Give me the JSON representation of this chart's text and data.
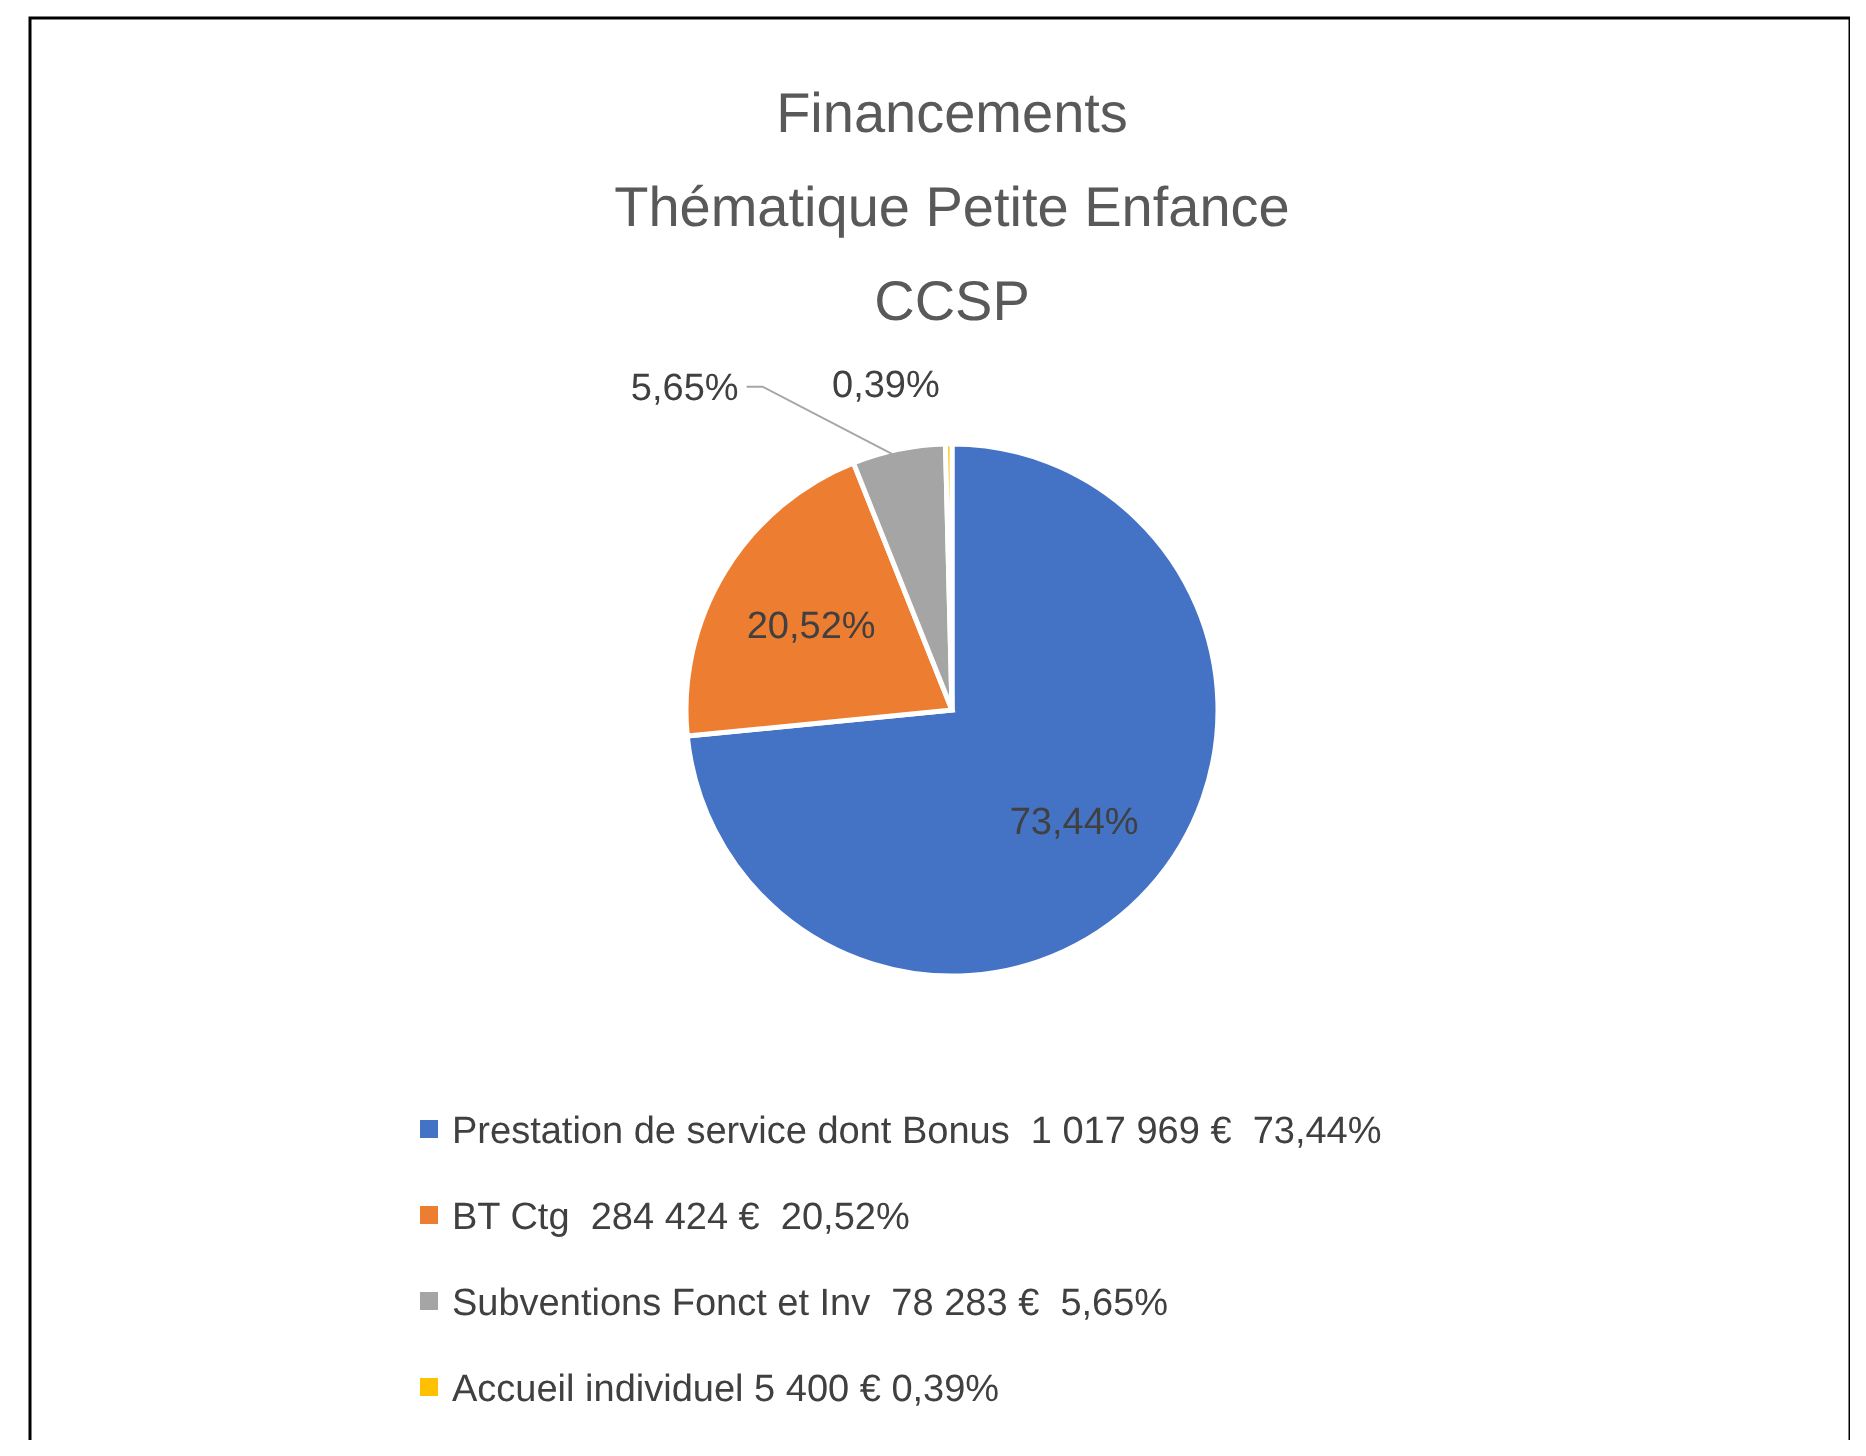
{
  "chart_data": {
    "type": "pie",
    "title": "Financements\nThématique Petite Enfance\nCCSP",
    "categories": [
      "Prestation de service dont Bonus  1 017 969 €  73,44%",
      "BT Ctg  284 424 €  20,52%",
      "Subventions Fonct et Inv  78 283 €  5,65%",
      "Accueil individuel 5 400 € 0,39%"
    ],
    "values": [
      73.44,
      20.52,
      5.65,
      0.39
    ],
    "colors": [
      "#4472c4",
      "#ed7d31",
      "#a5a5a5",
      "#ffc000"
    ],
    "value_labels": [
      "73,44%",
      "20,52%",
      "5,65%",
      "0,39%"
    ],
    "legend": "bottom"
  }
}
